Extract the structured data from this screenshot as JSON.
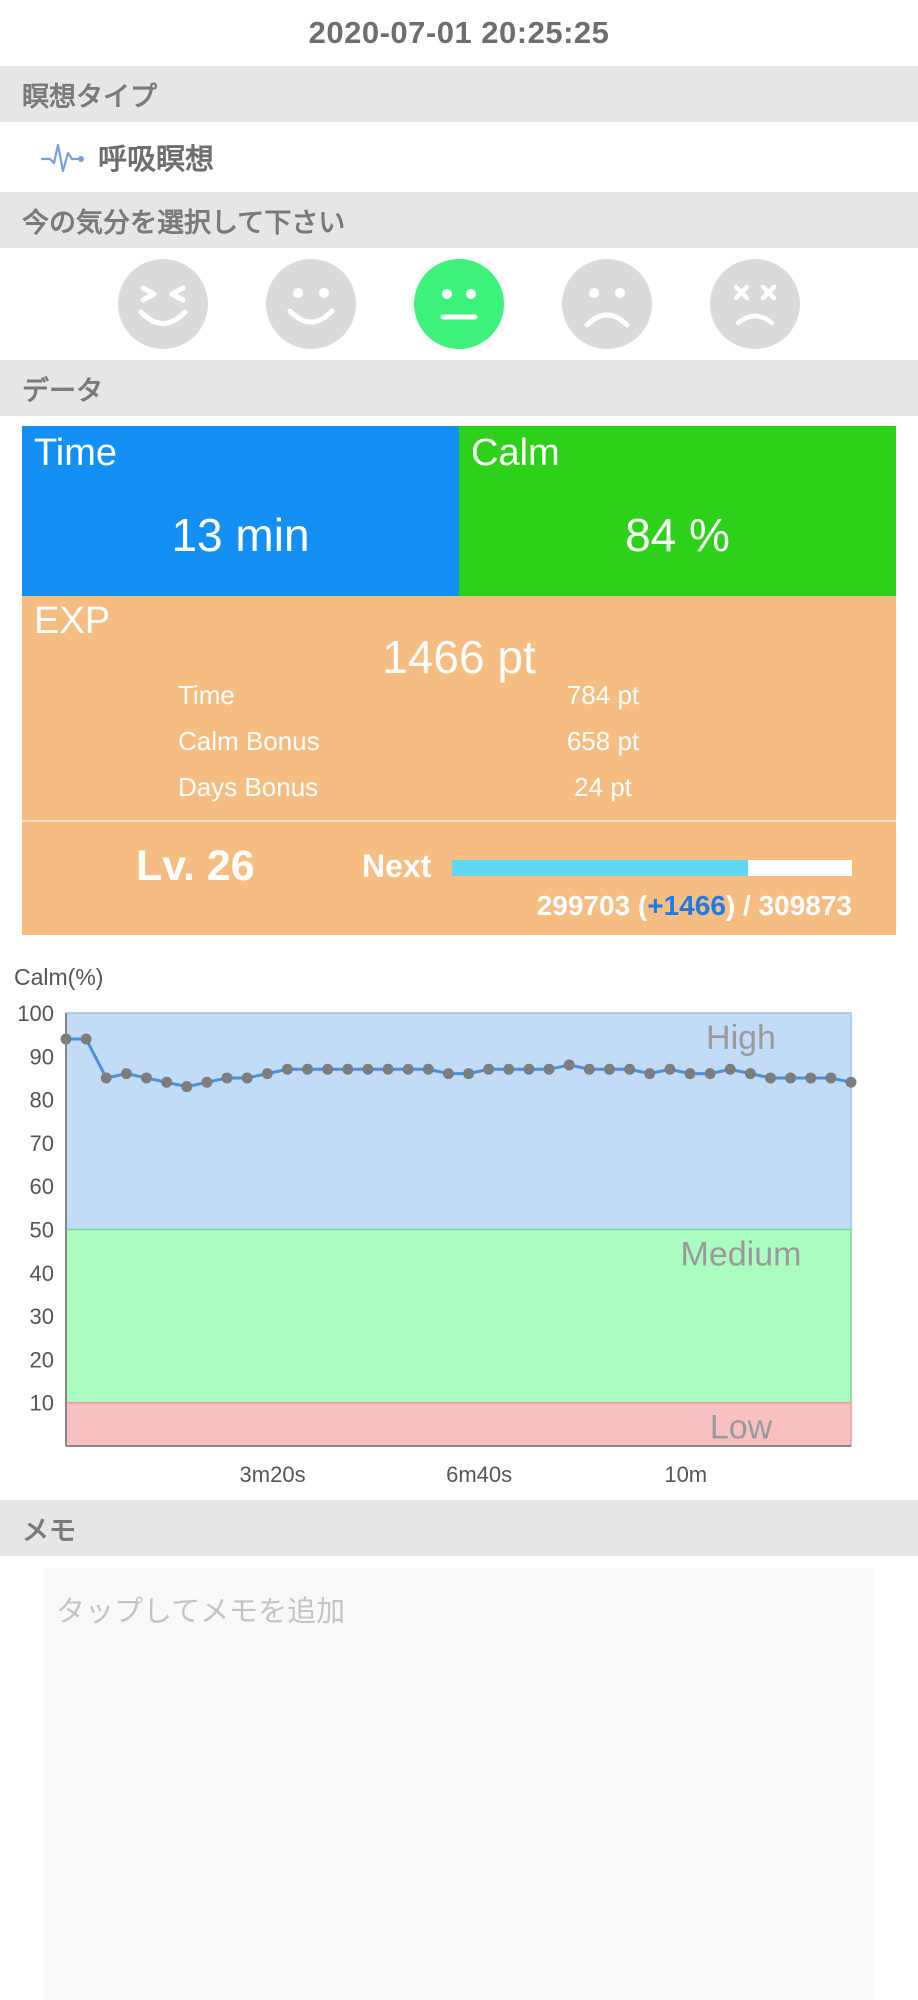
{
  "header": {
    "datetime": "2020-07-01 20:25:25"
  },
  "sections": {
    "meditation_type": "瞑想タイプ",
    "mood": "今の気分を選択して下さい",
    "data": "データ",
    "memo": "メモ"
  },
  "meditation_type": {
    "icon": "heartbeat-icon",
    "label": "呼吸瞑想",
    "icon_color": "#7a9fd6"
  },
  "moods": [
    {
      "name": "laughing-face-icon",
      "selected": false
    },
    {
      "name": "smiling-face-icon",
      "selected": false
    },
    {
      "name": "neutral-face-icon",
      "selected": true
    },
    {
      "name": "sad-face-icon",
      "selected": false
    },
    {
      "name": "dizzy-face-icon",
      "selected": false
    }
  ],
  "metrics": {
    "time": {
      "title": "Time",
      "value": "13 min",
      "color": "#1490f5"
    },
    "calm": {
      "title": "Calm",
      "value": "84 %",
      "color": "#2ed11a"
    }
  },
  "exp": {
    "title": "EXP",
    "total": "1466 pt",
    "breakdown": [
      {
        "label": "Time",
        "value": "784 pt"
      },
      {
        "label": "Calm Bonus",
        "value": "658 pt"
      },
      {
        "label": "Days Bonus",
        "value": "24 pt"
      }
    ],
    "color": "#f5bd82"
  },
  "level": {
    "label": "Lv. 26",
    "next_label": "Next",
    "current": "299703",
    "gain": "+1466",
    "target": "309873",
    "progress_fraction": 0.74
  },
  "chart_data": {
    "type": "line",
    "ylabel": "Calm(%)",
    "ylim": [
      0,
      100
    ],
    "yticks": [
      10,
      20,
      30,
      40,
      50,
      60,
      70,
      80,
      90,
      100
    ],
    "xlim_seconds": [
      0,
      760
    ],
    "xticks": [
      {
        "value": 200,
        "label": "3m20s"
      },
      {
        "value": 400,
        "label": "6m40s"
      },
      {
        "value": 600,
        "label": "10m"
      }
    ],
    "zones": [
      {
        "name": "High",
        "from": 50,
        "to": 100,
        "color": "#c2dcf8"
      },
      {
        "name": "Medium",
        "from": 10,
        "to": 50,
        "color": "#abfcc0"
      },
      {
        "name": "Low",
        "from": 0,
        "to": 10,
        "color": "#f8c0c0"
      }
    ],
    "line_color": "#4a90e2",
    "point_color": "#7d7d7d",
    "series": [
      {
        "values": [
          94,
          94,
          85,
          86,
          85,
          84,
          83,
          84,
          85,
          85,
          86,
          87,
          87,
          87,
          87,
          87,
          87,
          87,
          87,
          86,
          86,
          87,
          87,
          87,
          87,
          88,
          87,
          87,
          87,
          86,
          87,
          86,
          86,
          87,
          86,
          85,
          85,
          85,
          85,
          84
        ]
      }
    ]
  },
  "memo": {
    "placeholder": "タップしてメモを追加"
  }
}
